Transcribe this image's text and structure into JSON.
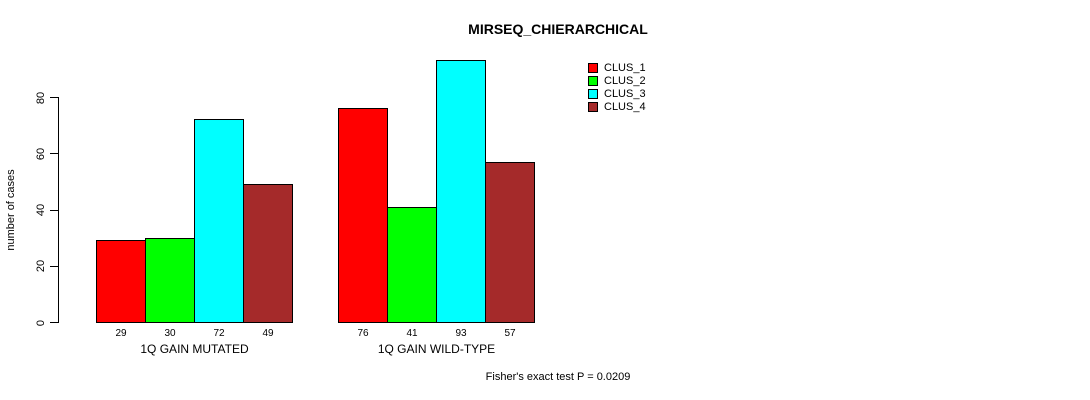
{
  "chart_data": {
    "type": "bar",
    "title": "MIRSEQ_CHIERARCHICAL",
    "xlabel": "",
    "ylabel": "number of cases",
    "categories": [
      "1Q GAIN MUTATED",
      "1Q GAIN WILD-TYPE"
    ],
    "series": [
      {
        "name": "CLUS_1",
        "color": "#ff0000",
        "values": [
          29,
          76
        ]
      },
      {
        "name": "CLUS_2",
        "color": "#00ff00",
        "values": [
          30,
          41
        ]
      },
      {
        "name": "CLUS_3",
        "color": "#00ffff",
        "values": [
          72,
          93
        ]
      },
      {
        "name": "CLUS_4",
        "color": "#a52a2a",
        "values": [
          49,
          57
        ]
      }
    ],
    "yticks": [
      0,
      20,
      40,
      60,
      80
    ],
    "ylim": [
      0,
      93
    ],
    "grid": false,
    "legend_position": "top-right",
    "bar_value_labels_shown": true,
    "annotation": "Fisher's exact test P = 0.0209"
  }
}
